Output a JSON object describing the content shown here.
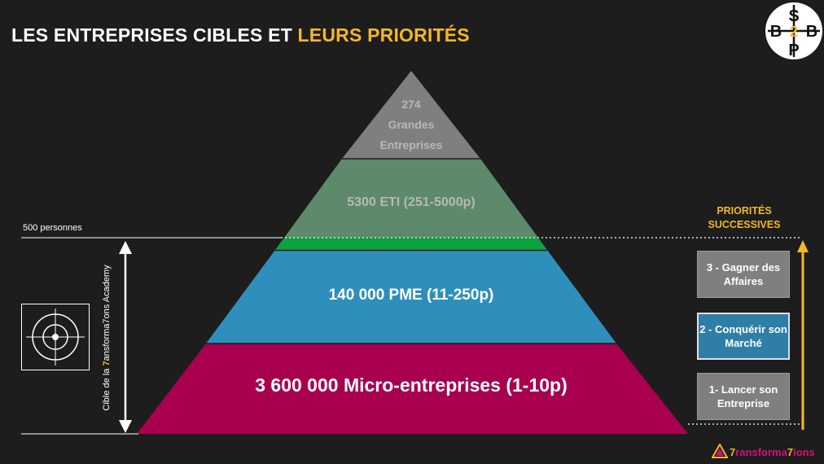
{
  "title": {
    "part1": "LES ENTREPRISES CIBLES ET ",
    "part2": "LEURS PRIORITÉS"
  },
  "logo": {
    "letters": [
      "S",
      "B",
      "2",
      "B",
      "P"
    ]
  },
  "pyramid": [
    {
      "id": "grandes",
      "line1": "274",
      "line2": "Grandes",
      "line3": "Entreprises",
      "color": "#7f7f7f"
    },
    {
      "id": "eti",
      "label": "5300 ETI (251-5000p)",
      "color": "#5c8a6b"
    },
    {
      "id": "pme",
      "label": "140 000 PME (11-250p)",
      "color": "#2f8fbc"
    },
    {
      "id": "micro",
      "label": "3 600 000 Micro-entreprises (1-10p)",
      "color": "#a8004f"
    }
  ],
  "threshold_label": "500 personnes",
  "target_label": {
    "before": "Cible de la ",
    "seven": "7",
    "after": "ansforma7ons Academy"
  },
  "priorities": {
    "title_line1": "PRIORITÉS",
    "title_line2": "SUCCESSIVES",
    "items": [
      {
        "label": "3 - Gagner des Affaires"
      },
      {
        "label": "2 - Conquérir son Marché"
      },
      {
        "label": "1- Lancer son Entreprise"
      }
    ]
  },
  "brand": {
    "seven1": "7",
    "mid": "ransforma",
    "seven2": "7",
    "end": "ions"
  },
  "colors": {
    "accent": "#f4b729",
    "background": "#1d1d1d",
    "green_band": "#0aa33f"
  }
}
